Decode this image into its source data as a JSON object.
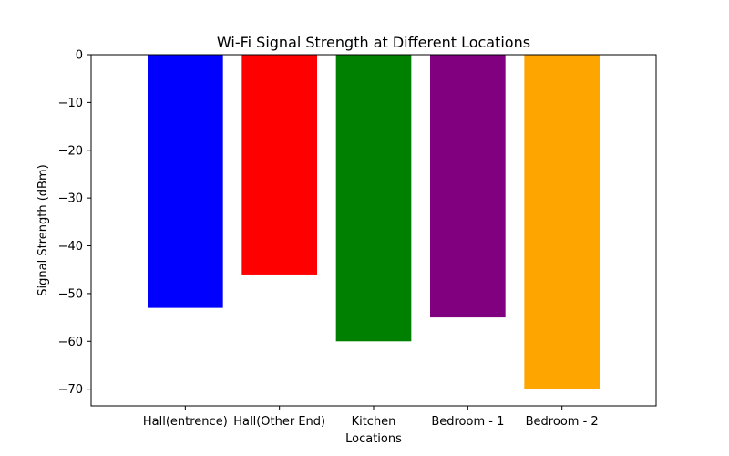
{
  "chart_data": {
    "type": "bar",
    "title": "Wi-Fi Signal Strength at Different Locations",
    "xlabel": "Locations",
    "ylabel": "Signal Strength (dBm)",
    "categories": [
      "Hall(entrence)",
      "Hall(Other End)",
      "Kitchen",
      "Bedroom - 1",
      "Bedroom - 2"
    ],
    "values": [
      -53,
      -46,
      -60,
      -55,
      -70
    ],
    "colors": [
      "#0000ff",
      "#ff0000",
      "#008000",
      "#800080",
      "#ffa500"
    ],
    "ylim": [
      -73.5,
      0
    ],
    "yticks": [
      0,
      -10,
      -20,
      -30,
      -40,
      -50,
      -60,
      -70
    ],
    "ytick_labels": [
      "0",
      "−10",
      "−20",
      "−30",
      "−40",
      "−50",
      "−60",
      "−70"
    ],
    "grid": false,
    "legend": "none"
  }
}
